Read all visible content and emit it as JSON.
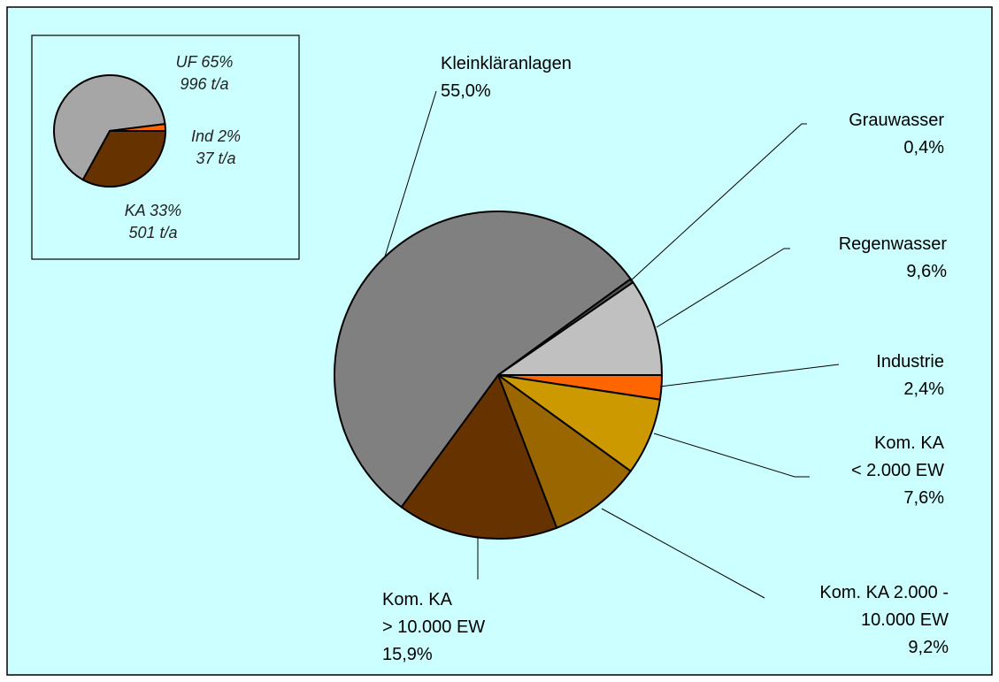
{
  "chart_data": [
    {
      "type": "pie",
      "categories": [
        "Industrie",
        "Kom. KA\n< 2.000 EW",
        "Kom. KA 2.000 -\n10.000 EW",
        "Kom. KA\n> 10.000 EW",
        "Kleinkläranlagen",
        "Grauwasser",
        "Regenwasser"
      ],
      "values": [
        2.4,
        7.6,
        9.2,
        15.9,
        55.0,
        0.4,
        9.6
      ],
      "value_labels": [
        "2,4%",
        "7,6%",
        "9,2%",
        "15,9%",
        "55,0%",
        "0,4%",
        "9,6%"
      ],
      "colors": [
        "#ff6600",
        "#cc9900",
        "#996600",
        "#663300",
        "#808080",
        "#555555",
        "#c0c0c0"
      ]
    },
    {
      "type": "pie",
      "categories": [
        "KA",
        "UF",
        "Ind"
      ],
      "values": [
        33,
        65,
        2
      ],
      "value_labels": [
        "33%",
        "65%",
        "2%"
      ],
      "annual_loads": [
        501,
        996,
        37
      ],
      "annual_load_labels": [
        "501 t/a",
        "996 t/a",
        "37 t/a"
      ],
      "colors": [
        "#663300",
        "#a6a6a6",
        "#ff6600"
      ]
    }
  ]
}
